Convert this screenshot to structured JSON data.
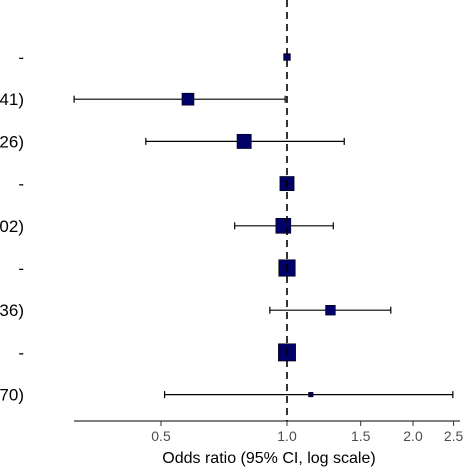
{
  "chart_data": {
    "type": "forest",
    "xlabel": "Odds ratio (95% CI, log scale)",
    "x_scale": "log",
    "xlim": [
      0.27,
      2.7
    ],
    "ticks": [
      {
        "value": 0.5,
        "label": "0.5"
      },
      {
        "value": 1.0,
        "label": "1.0"
      },
      {
        "value": 1.5,
        "label": "1.5"
      },
      {
        "value": 2.0,
        "label": "2.0"
      },
      {
        "value": 2.5,
        "label": "2.5"
      }
    ],
    "reference_line": 1.0,
    "rows": [
      {
        "label": "-",
        "or": 1.0,
        "lower": null,
        "upper": null,
        "weight": 0.45
      },
      {
        "label": "41)",
        "or": 0.58,
        "lower": 0.31,
        "upper": 0.99,
        "weight": 0.8
      },
      {
        "label": "26)",
        "or": 0.79,
        "lower": 0.46,
        "upper": 1.37,
        "weight": 0.95
      },
      {
        "label": "-",
        "or": 1.0,
        "lower": null,
        "upper": null,
        "weight": 0.95
      },
      {
        "label": "02)",
        "or": 0.98,
        "lower": 0.75,
        "upper": 1.29,
        "weight": 1.0
      },
      {
        "label": "-",
        "or": 1.0,
        "lower": null,
        "upper": null,
        "weight": 1.1
      },
      {
        "label": "36)",
        "or": 1.27,
        "lower": 0.91,
        "upper": 1.77,
        "weight": 0.65
      },
      {
        "label": "-",
        "or": 1.0,
        "lower": null,
        "upper": null,
        "weight": 1.15
      },
      {
        "label": "70)",
        "or": 1.14,
        "lower": 0.51,
        "upper": 2.49,
        "weight": 0.3
      }
    ],
    "point_color": "#000066",
    "line_color": "#000000",
    "reference_line_style": "dashed",
    "grid": false
  }
}
